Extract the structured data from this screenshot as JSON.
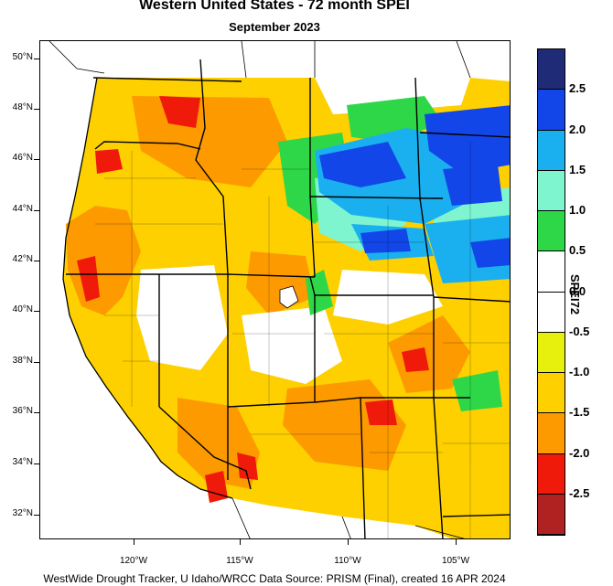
{
  "title": "Western United States - 72 month SPEI",
  "subtitle": "September 2023",
  "footer": "WestWide Drought Tracker, U Idaho/WRCC Data Source: PRISM (Final), created 16 APR 2024",
  "lat_labels": [
    "50°N",
    "48°N",
    "46°N",
    "44°N",
    "42°N",
    "40°N",
    "38°N",
    "36°N",
    "34°N",
    "32°N"
  ],
  "lon_labels": [
    "120°W",
    "115°W",
    "110°W",
    "105°W"
  ],
  "colorbar": {
    "title": "SPEI72",
    "labels": [
      "2.5",
      "2.0",
      "1.5",
      "1.0",
      "0.5",
      "0.0",
      "-0.5",
      "-1.0",
      "-1.5",
      "-2.0",
      "-2.5"
    ],
    "colors": [
      "#1f2b77",
      "#1346e8",
      "#1ab0f0",
      "#7ff5cf",
      "#2ed748",
      "#ffffff",
      "#ffffff",
      "#e6f00c",
      "#fed000",
      "#fd9a00",
      "#f01a0a",
      "#b02222"
    ]
  },
  "legend_colors": {
    "very_wet": "#1346e8",
    "wet": "#1ab0f0",
    "moist": "#7ff5cf",
    "slightly_wet": "#2ed748",
    "near_normal": "#ffffff",
    "abnormally_dry": "#e6f00c",
    "moderately_dry": "#fed000",
    "severely_dry": "#fd9a00",
    "extremely_dry": "#f01a0a",
    "exceptionally_dry": "#b02222"
  }
}
